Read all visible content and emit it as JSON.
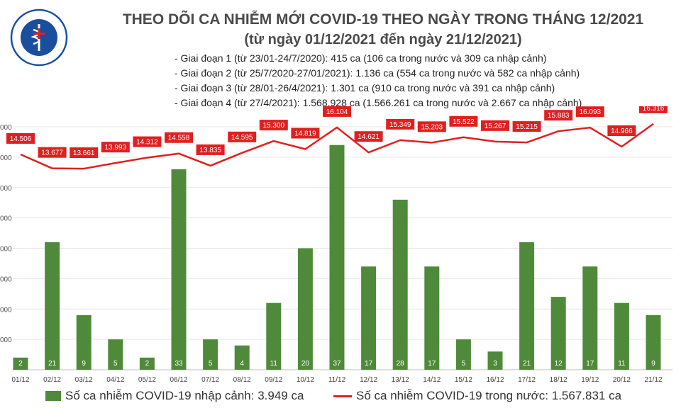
{
  "logo": {
    "top_text": "BỘ Y TẾ",
    "bottom_text": "MINISTRY OF HEALTH",
    "color": "#1a4fa0"
  },
  "header": {
    "title": "THEO DÕI CA NHIỄM MỚI COVID-19 THEO NGÀY TRONG THÁNG 12/2021",
    "subtitle": "(từ ngày 01/12/2021 đến ngày 21/12/2021)",
    "phases": [
      "- Giai đoạn 1 (từ 23/01-24/7/2020): 415 ca (106 ca trong nước và 309 ca nhập cảnh)",
      "- Giai đoạn 2 (từ 25/7/2020-27/01/2021): 1.136 ca (554 ca trong nước và 582 ca nhập cảnh)",
      "- Giai đoạn 3 (từ 28/01-26/4/2021): 1.301 ca (910 ca trong nước và 391 ca nhập cảnh)",
      "- Giai đoạn 4 (từ 27/4/2021): 1.568.928 ca (1.566.261 ca trong nước và 2.667 ca nhập cảnh)"
    ]
  },
  "chart_data": {
    "type": "bar",
    "categories": [
      "01/12",
      "02/12",
      "03/12",
      "04/12",
      "05/12",
      "06/12",
      "07/12",
      "08/12",
      "09/12",
      "10/12",
      "11/12",
      "12/12",
      "13/12",
      "14/12",
      "15/12",
      "16/12",
      "17/12",
      "18/12",
      "19/12",
      "20/12",
      "21/12"
    ],
    "series": [
      {
        "name": "Số ca nhiễm COVID-19 nhập cảnh: 3.949 ca",
        "type": "bar",
        "color": "#4f8a3a",
        "values": [
          2,
          21,
          9,
          5,
          2,
          33,
          5,
          4,
          11,
          20,
          37,
          17,
          28,
          17,
          5,
          3,
          21,
          12,
          17,
          11,
          9
        ],
        "labels": [
          "2",
          "21",
          "9",
          "5",
          "2",
          "33",
          "5",
          "4",
          "11",
          "20",
          "37",
          "17",
          "28",
          "17",
          "5",
          "3",
          "21",
          "12",
          "17",
          "11",
          "9"
        ]
      },
      {
        "name": "Số ca nhiễm COVID-19 trong nước: 1.567.831 ca",
        "type": "line",
        "color": "#e02020",
        "values": [
          14506,
          13677,
          13661,
          13993,
          14312,
          14558,
          13835,
          14595,
          15300,
          14819,
          16104,
          14621,
          15349,
          15203,
          15522,
          15267,
          15215,
          15883,
          16093,
          14966,
          16316
        ],
        "labels": [
          "14.506",
          "13.677",
          "13.661",
          "13.993",
          "14.312",
          "14.558",
          "13.835",
          "14.595",
          "15.300",
          "14.819",
          "16.104",
          "14.621",
          "15.349",
          "15.203",
          "15.522",
          "15.267",
          "15.215",
          "15.883",
          "16.093",
          "14.966",
          "16.316"
        ]
      }
    ],
    "bar_ylim": [
      0,
      40
    ],
    "line_ylim": [
      0,
      16000
    ],
    "y_ticks": [
      "000",
      "000",
      "000",
      "000",
      "000",
      "000",
      "000",
      "000"
    ]
  }
}
